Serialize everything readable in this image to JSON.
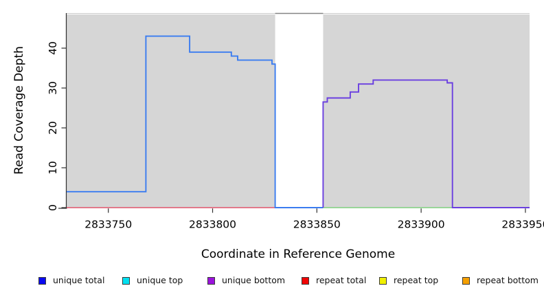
{
  "chart_data": {
    "type": "line",
    "title": "",
    "xlabel": "Coordinate in Reference Genome",
    "ylabel": "Read Coverage Depth",
    "xlim": [
      2833730,
      2833952
    ],
    "ylim": [
      0,
      48.8
    ],
    "x_ticks": [
      2833750,
      2833800,
      2833850,
      2833900,
      2833950
    ],
    "y_ticks": [
      0,
      10,
      20,
      30,
      40
    ],
    "grid": false,
    "plot_bg": "#ffffff",
    "shaded_color": "#d6d6d6",
    "top_edge_color": "#cbcbcb",
    "axis_color": "#2f2f2f",
    "shaded_regions": [
      {
        "name": "shaded-left",
        "x0": 2833730,
        "x1": 2833830
      },
      {
        "name": "shaded-right",
        "x0": 2833853,
        "x1": 2833952
      }
    ],
    "gap_region": {
      "x0": 2833830,
      "x1": 2833853,
      "top_border_color": "#848484"
    },
    "series": [
      {
        "name": "repeat total",
        "color": "#df536b",
        "width": 1.4,
        "points": [
          [
            2833730,
            0
          ],
          [
            2833830,
            0
          ]
        ]
      },
      {
        "name": "green baseline segment",
        "color": "#7fcf7f",
        "width": 1.4,
        "points": [
          [
            2833853,
            0
          ],
          [
            2833915,
            0
          ]
        ]
      },
      {
        "name": "unique total",
        "color": "#3a7cf0",
        "width": 1.9,
        "points": [
          [
            2833730,
            4
          ],
          [
            2833768,
            4
          ],
          [
            2833768,
            43
          ],
          [
            2833789,
            43
          ],
          [
            2833789,
            39
          ],
          [
            2833809,
            39
          ],
          [
            2833809,
            38
          ],
          [
            2833812,
            38
          ],
          [
            2833812,
            37
          ],
          [
            2833828.5,
            37
          ],
          [
            2833828.5,
            36
          ],
          [
            2833830,
            36
          ],
          [
            2833830,
            0
          ],
          [
            2833853,
            0
          ]
        ]
      },
      {
        "name": "unique bottom",
        "color": "#6a3fe0",
        "width": 1.9,
        "points": [
          [
            2833853,
            0
          ],
          [
            2833853,
            26.5
          ],
          [
            2833855,
            26.5
          ],
          [
            2833855,
            27.5
          ],
          [
            2833866,
            27.5
          ],
          [
            2833866,
            29
          ],
          [
            2833870,
            29
          ],
          [
            2833870,
            31
          ],
          [
            2833877,
            31
          ],
          [
            2833877,
            32
          ],
          [
            2833912.5,
            32
          ],
          [
            2833912.5,
            31.3
          ],
          [
            2833915,
            31.3
          ],
          [
            2833915,
            0
          ],
          [
            2833952,
            0
          ]
        ]
      }
    ],
    "legend_position": "bottom"
  },
  "legend": {
    "items": [
      {
        "label": "unique total",
        "color": "#0a0af0"
      },
      {
        "label": "unique top",
        "color": "#00e0f0"
      },
      {
        "label": "unique bottom",
        "color": "#9b13dc"
      },
      {
        "label": "repeat total",
        "color": "#f00505"
      },
      {
        "label": "repeat top",
        "color": "#f0f000"
      },
      {
        "label": "repeat bottom",
        "color": "#f5a000"
      }
    ]
  }
}
